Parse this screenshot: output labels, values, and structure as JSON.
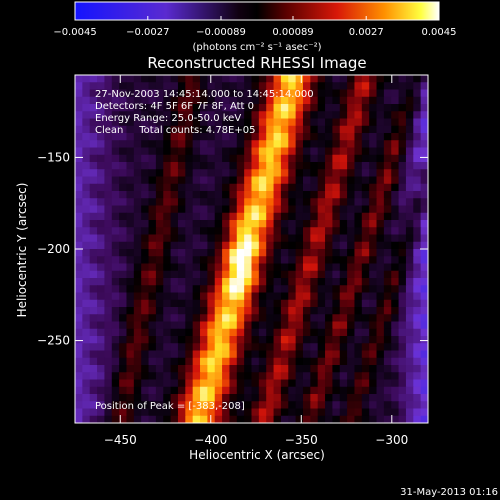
{
  "chart_data": {
    "type": "heatmap",
    "title": "Reconstructed RHESSI Image",
    "xlabel": "Heliocentric X (arcsec)",
    "ylabel": "Heliocentric Y (arcsec)",
    "xlim": [
      -475,
      -280
    ],
    "ylim": [
      -295,
      -105
    ],
    "x_ticks": [
      -450,
      -400,
      -350,
      -300
    ],
    "y_ticks": [
      -150,
      -200,
      -250
    ],
    "x_tick_labels": [
      "−450",
      "−400",
      "−350",
      "−300"
    ],
    "y_tick_labels": [
      "−150",
      "−200",
      "−250"
    ],
    "colorbar": {
      "range": [
        -0.0045,
        0.0045
      ],
      "tick_labels": [
        "−0.0045",
        "−0.0027",
        "−0.00089",
        "0.00089",
        "0.0027",
        "0.0045"
      ],
      "unit_label": "(photons cm⁻² s⁻¹ asec⁻²)"
    },
    "colors": {
      "low": "#1a1aff",
      "mid": "#000000",
      "high": "#ffffff",
      "accent": "#ff2000"
    },
    "annotations": [
      "27-Nov-2003 14:45:14.000 to 14:45:14.000",
      "Detectors: 4F 5F 6F 7F 8F, Att 0",
      "Energy Range: 25.0-50.0 keV",
      "Clean     Total counts: 4.78E+05"
    ],
    "peak": {
      "label": "Position of Peak = [-383,-208]",
      "x": -383,
      "y": -208
    },
    "bands": [
      {
        "x0": -383,
        "slope": 0.28,
        "width": 14,
        "amp": 1.0
      },
      {
        "x0": -345,
        "slope": 0.3,
        "width": 9,
        "amp": 0.55
      },
      {
        "x0": -318,
        "slope": 0.32,
        "width": 7,
        "amp": 0.45
      },
      {
        "x0": -295,
        "slope": 0.33,
        "width": 6,
        "amp": 0.35
      },
      {
        "x0": -432,
        "slope": 0.22,
        "width": 8,
        "amp": 0.38
      }
    ]
  },
  "footer": {
    "timestamp": "31-May-2013 01:16"
  }
}
